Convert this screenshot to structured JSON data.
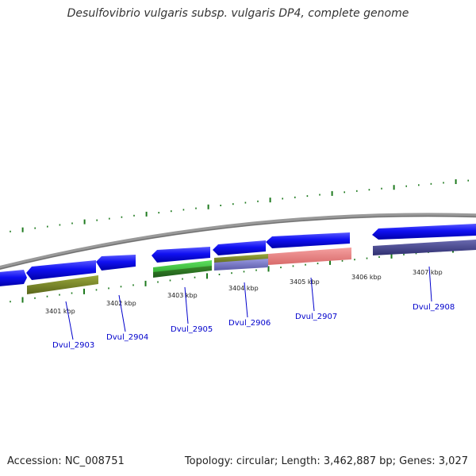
{
  "title": "Desulfovibrio vulgaris subsp. vulgaris DP4, complete genome",
  "footer": {
    "accession": "Accession: NC_008751",
    "stats": "Topology: circular; Length: 3,462,887 bp; Genes: 3,027"
  },
  "ticks": [
    "3401 kbp",
    "3402 kbp",
    "3403 kbp",
    "3404 kbp",
    "3405 kbp",
    "3406 kbp",
    "3407 kbp"
  ],
  "gene_labels": [
    "Dvul_2903",
    "Dvul_2904",
    "Dvul_2905",
    "Dvul_2906",
    "Dvul_2907",
    "Dvul_2908"
  ],
  "colors": {
    "cds": "#0a0af0",
    "backbone": "#8c8c8c",
    "tick": "#1e7a1e",
    "olive": "#7f8c2a",
    "green": "#44cc44",
    "lavender": "#8080c8",
    "salmon": "#ee8888",
    "indigo": "#4a4a8e",
    "label": "#0000cc"
  }
}
